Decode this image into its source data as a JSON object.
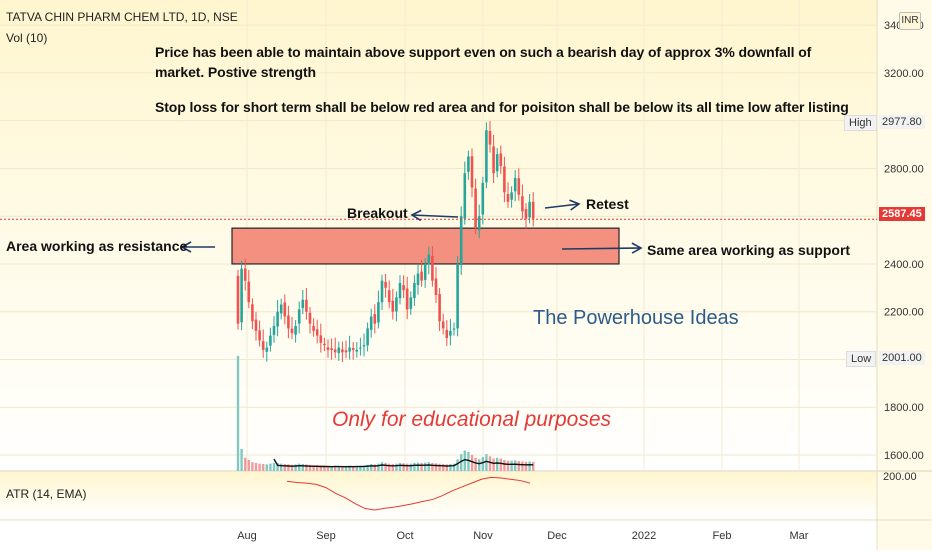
{
  "header": {
    "symbol": "TATVA CHIN PHARM CHEM LTD, 1D, NSE",
    "volume": "Vol (10)",
    "currency": "INR"
  },
  "notes": {
    "line1": "Price has been able to maintain above support even on such a bearish day of approx 3% downfall of",
    "line2": "market. Postive strength",
    "line3": "Stop loss for short term shall be below red area and for poisiton shall be below its all time low after listing"
  },
  "annotations": {
    "breakout": "Breakout",
    "retest": "Retest",
    "resistance": "Area working as resistance",
    "support": "Same area working as support",
    "watermark": "The Powerhouse Ideas",
    "disclaimer": "Only for educational purposes"
  },
  "indicator": {
    "label": "ATR (14, EMA)",
    "axis_label": "200.00"
  },
  "price_scale": {
    "high_label": "High",
    "high_value": "2977.80",
    "low_label": "Low",
    "low_value": "2001.00",
    "last_price": "2587.45"
  },
  "colors": {
    "background_top": "#fff7d2",
    "up": "#26a69a",
    "down": "#ef5350",
    "zone_fill": "#f4907f",
    "last_price": "#e53935",
    "atr_line": "#e53935",
    "watermark": "#2e5c8a"
  },
  "chart_data": {
    "type": "candlestick",
    "title": "TATVA CHIN PHARM CHEM LTD, 1D, NSE",
    "x_ticks": [
      "Aug",
      "Sep",
      "Oct",
      "Nov",
      "Dec",
      "2022",
      "Feb",
      "Mar"
    ],
    "y_ticks": [
      1600,
      1800,
      2000,
      2200,
      2400,
      2600,
      2800,
      3000,
      3200,
      3400
    ],
    "y_tick_labels": [
      "1600.00",
      "1800.00",
      "2000.00",
      "2200.00",
      "2400.00",
      "2600.00",
      "2800.00",
      "3000.00",
      "3200.00",
      "3400.00"
    ],
    "ylim": [
      1545,
      3470
    ],
    "close_series": [
      2150,
      2380,
      2330,
      2240,
      2160,
      2120,
      2080,
      2040,
      2050,
      2100,
      2140,
      2200,
      2230,
      2180,
      2130,
      2110,
      2140,
      2210,
      2250,
      2200,
      2150,
      2120,
      2100,
      2070,
      2060,
      2040,
      2040,
      2030,
      2050,
      2030,
      2030,
      2050,
      2040,
      2040,
      2050,
      2060,
      2130,
      2180,
      2150,
      2240,
      2330,
      2300,
      2240,
      2200,
      2260,
      2320,
      2290,
      2210,
      2260,
      2320,
      2360,
      2330,
      2400,
      2440,
      2330,
      2270,
      2160,
      2130,
      2090,
      2120,
      2130,
      2400,
      2600,
      2780,
      2850,
      2720,
      2550,
      2600,
      2740,
      2960,
      2900,
      2780,
      2860,
      2810,
      2700,
      2660,
      2700,
      2760,
      2690,
      2620,
      2590,
      2660,
      2590
    ],
    "resistance_support_zone": [
      2400,
      2550
    ],
    "last_price": 2587.45,
    "high": 2977.8,
    "low": 2001,
    "volume_series": [
      5000,
      300,
      180,
      150,
      120,
      110,
      100,
      95,
      90,
      100,
      110,
      110,
      100,
      95,
      90,
      85,
      90,
      100,
      95,
      90,
      85,
      80,
      80,
      75,
      75,
      72,
      70,
      72,
      72,
      70,
      70,
      72,
      70,
      72,
      74,
      76,
      85,
      95,
      90,
      100,
      120,
      110,
      100,
      95,
      100,
      110,
      105,
      100,
      100,
      110,
      115,
      110,
      115,
      120,
      110,
      105,
      100,
      95,
      90,
      95,
      100,
      160,
      230,
      280,
      260,
      220,
      180,
      160,
      190,
      230,
      200,
      170,
      180,
      170,
      150,
      140,
      140,
      145,
      135,
      130,
      125,
      130,
      125
    ],
    "atr_series": [
      0.9,
      0.86,
      0.84,
      0.8,
      0.7,
      0.52,
      0.38,
      0.2,
      0.05,
      0.0,
      0.05,
      0.09,
      0.14,
      0.2,
      0.27,
      0.33,
      0.45,
      0.6,
      0.72,
      0.84,
      0.96,
      1.02,
      1.0,
      0.96,
      0.92,
      0.84
    ]
  }
}
